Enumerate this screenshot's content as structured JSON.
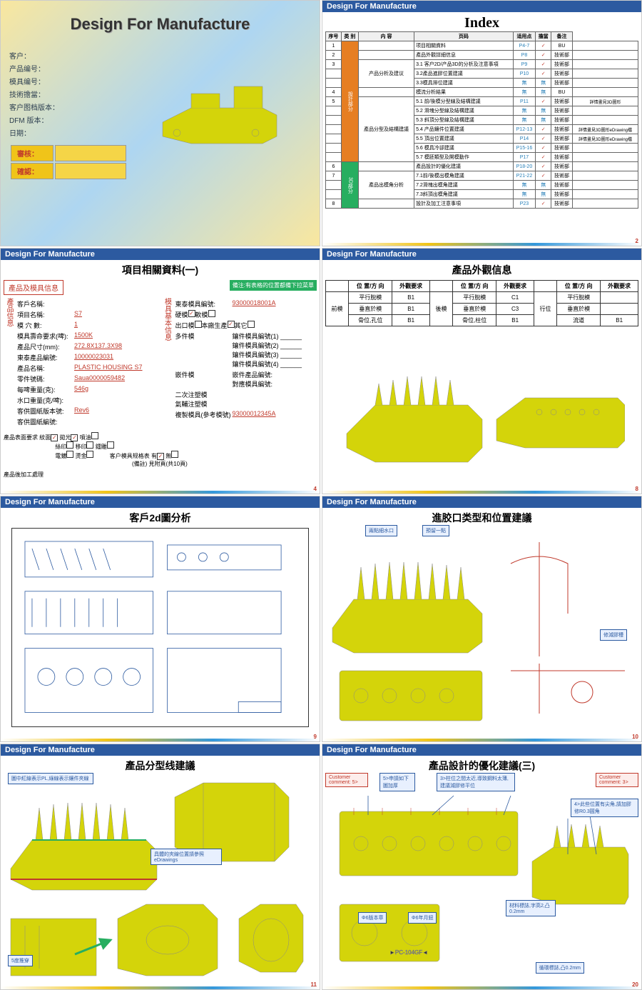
{
  "header": "Design For Manufacture",
  "slide1": {
    "title": "Design For Manufacture",
    "fields": [
      "客户：",
      "产品编号：",
      "模具编号：",
      "技術擔當：",
      "客户图档版本：",
      "DFM 版本：",
      "日期："
    ],
    "sig1": "審核：",
    "sig2": "確認："
  },
  "slide2": {
    "title": "Index",
    "cols": [
      "序号",
      "类 别",
      "内 容",
      "页码",
      "适用点",
      "擔當",
      "备注"
    ],
    "cat1": "設計部分",
    "cat2": "3D部分",
    "sub1": "产品分析及建议",
    "sub2": "產品分型及結構建議",
    "sub3": "產品出模角分析",
    "rows": [
      {
        "n": "1",
        "t": "项目相關資料",
        "p": "P4-7",
        "c": "✓",
        "d": "BU",
        "r": ""
      },
      {
        "n": "2",
        "t": "產品外觀詳細信息",
        "p": "P8",
        "c": "✓",
        "d": "技術部",
        "r": ""
      },
      {
        "n": "3",
        "t": "3.1 客户2D/产品3D的分析及注意事項",
        "p": "P9",
        "c": "✓",
        "d": "技術部",
        "r": ""
      },
      {
        "n": "",
        "t": "3.2產品進膠位置建議",
        "p": "P10",
        "c": "✓",
        "d": "技術部",
        "r": ""
      },
      {
        "n": "",
        "t": "3.3模具排位建議",
        "p": "無",
        "c": "無",
        "d": "技術部",
        "r": ""
      },
      {
        "n": "4",
        "t": "模流分析結果",
        "p": "無",
        "c": "無",
        "d": "BU",
        "r": ""
      },
      {
        "n": "5",
        "t": "5.1 前/後模分型線及結構建議",
        "p": "P11",
        "c": "✓",
        "d": "技術部",
        "r": "詳情畫見3D圖形"
      },
      {
        "n": "",
        "t": "5.2 滑塊分型線及結構建議",
        "p": "無",
        "c": "無",
        "d": "技術部",
        "r": ""
      },
      {
        "n": "",
        "t": "5.3 斜頂分型線及結構建議",
        "p": "無",
        "c": "無",
        "d": "技術部",
        "r": ""
      },
      {
        "n": "",
        "t": "5.4 产品鑲件位置建議",
        "p": "P12-13",
        "c": "✓",
        "d": "技術部",
        "r": "詳情畫見3D圖形eDrawing檔"
      },
      {
        "n": "",
        "t": "5.5 頂出位置建議",
        "p": "P14",
        "c": "✓",
        "d": "技術部",
        "r": "詳情畫見3D圖形eDrawing檔"
      },
      {
        "n": "",
        "t": "5.6 模具冷卻建議",
        "p": "P15-16",
        "c": "✓",
        "d": "技術部",
        "r": ""
      },
      {
        "n": "",
        "t": "5.7 模胚類型及開模動作",
        "p": "P17",
        "c": "✓",
        "d": "技術部",
        "r": ""
      },
      {
        "n": "6",
        "t": "產品設計的優化建議",
        "p": "P18-20",
        "c": "✓",
        "d": "技術部",
        "r": ""
      },
      {
        "n": "7",
        "t": "7.1前/後模出模角建議",
        "p": "P21-22",
        "c": "✓",
        "d": "技術部",
        "r": ""
      },
      {
        "n": "",
        "t": "7.2滑塊出模角建議",
        "p": "無",
        "c": "無",
        "d": "技術部",
        "r": ""
      },
      {
        "n": "",
        "t": "7.3斜頂出模角建議",
        "p": "無",
        "c": "無",
        "d": "技術部",
        "r": ""
      },
      {
        "n": "8",
        "t": "設計及加工注意事項",
        "p": "P23",
        "c": "✓",
        "d": "技術部",
        "r": ""
      }
    ]
  },
  "slide4": {
    "title": "項目相關資料(一)",
    "info_label": "產品及模具信息",
    "warn": "備注:有表格的位置都備下拉菜單",
    "side_left": "產品信息",
    "side_right": "模具基本信息",
    "left": [
      {
        "l": "客戶名稱:",
        "v": ""
      },
      {
        "l": "項目名稱:",
        "v": "S7"
      },
      {
        "l": "模 穴 數:",
        "v": "1"
      },
      {
        "l": "模具壽命要求(啤):",
        "v": "1500K"
      },
      {
        "l": "產品尺寸(mm):",
        "v": "272.8X137.3X98"
      },
      {
        "l": "東泰產品編號:",
        "v": "10000023031"
      },
      {
        "l": "產品名稱:",
        "v": "PLASTIC HOUSING S7"
      },
      {
        "l": "零件號碼:",
        "v": "Saua0000059482"
      },
      {
        "l": "每啤重量(克):",
        "v": "546g"
      },
      {
        "l": "水口重量(克/啤):",
        "v": ""
      },
      {
        "l": "客供圖紙版本號:",
        "v": "Rev6"
      },
      {
        "l": "客供圖紙編號:",
        "v": ""
      }
    ],
    "right_mold": {
      "l": "東泰模具編號:",
      "v": "93000018001A"
    },
    "mold_type": {
      "l1": "硬模",
      "l2": "軟模"
    },
    "export": {
      "l1": "出口模",
      "l2": "本廠生產",
      "l3": "其它"
    },
    "multi": {
      "l": "多件模",
      "items": [
        "鑲件模具編號(1)",
        "鑲件模具編號(2)",
        "鑲件模具編號(3)",
        "鑲件模具編號(4)"
      ]
    },
    "insert": {
      "l": "嵌件模",
      "l1": "嵌件產品編號:",
      "l2": "對應模具編號:"
    },
    "other": [
      "二次注塑模",
      "氣輔注塑模"
    ],
    "copy": {
      "l": "複製模具(參考模號)",
      "v": "93000012345A"
    },
    "surface": {
      "l": "產品表面要求",
      "opts": [
        "紋面",
        "拋光",
        "噴油",
        "絲印",
        "移印",
        "鐳雕",
        "電鍍",
        "燙金"
      ],
      "checked": [
        0,
        1
      ]
    },
    "spec": {
      "l": "客户模具规格表",
      "y": "有",
      "n": "無",
      "note": "(備註) 見附頁(共10頁)"
    },
    "post": "產品後加工處理"
  },
  "slide8": {
    "title": "產品外觀信息",
    "headers": [
      "位 置/方 向",
      "外觀要求",
      "位 置/方 向",
      "外觀要求",
      "位 置/方 向",
      "外觀要求"
    ],
    "sections": [
      "前模",
      "後模",
      "行位"
    ],
    "rows": [
      [
        "平行脫模",
        "B1",
        "平行脫模",
        "C1",
        "平行脫模",
        ""
      ],
      [
        "垂直於模",
        "B1",
        "垂直於模",
        "C3",
        "垂直於模",
        ""
      ],
      [
        "骨位,孔位",
        "B1",
        "骨位,柱位",
        "B1",
        "流道",
        "B1"
      ]
    ]
  },
  "slide9": {
    "title": "客戶2d圖分析"
  },
  "slide10": {
    "title": "進胶口类型和位置建議",
    "callouts": [
      "兩點細水口",
      "預留一點",
      "修減膠槽"
    ]
  },
  "slide11": {
    "title": "產品分型线建議",
    "callouts": [
      "圖中紅線表示PL,綠線表示鑲件夾線",
      "具體的夾線位置請參照eDrawings",
      "5度推穿"
    ]
  },
  "slide20": {
    "title": "產品設計的優化建議(三)",
    "callouts": [
      "Customer comment: 5>",
      "5>申請如下圖加厚",
      "3>柱位之間太近,導致鋼料太薄,建議減膠修平位",
      "Customer comment: 3>",
      "4>此些位置有尖角,請加膠修R0.3圓角",
      "Φ6版本章",
      "Φ6年月鈕",
      "材料標誌,字高2,凸0.2mm",
      "循環標誌,凸0.2mm"
    ]
  },
  "colors": {
    "header_bg": "#2c5aa0",
    "part_yellow": "#d4d40a",
    "accent_red": "#c0392b",
    "orange": "#e67e22",
    "green": "#27ae60"
  }
}
